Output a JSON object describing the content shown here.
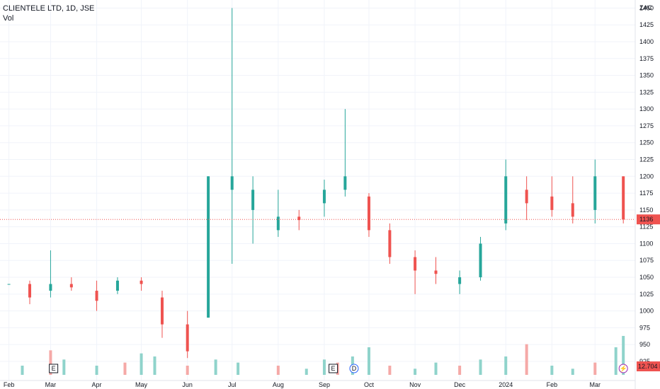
{
  "header": {
    "title": "CLIENTELE LTD, 1D, JSE",
    "volume_label": "Vol",
    "currency": "ZAC"
  },
  "price_axis": {
    "ticks": [
      925,
      950,
      975,
      1000,
      1025,
      1050,
      1075,
      1100,
      1125,
      1150,
      1175,
      1200,
      1225,
      1250,
      1275,
      1300,
      1325,
      1350,
      1375,
      1400,
      1425,
      1450
    ]
  },
  "last_price": {
    "value": 1136,
    "label": "1136"
  },
  "volume_badge": {
    "label": "12.704 K"
  },
  "time_axis": {
    "labels": [
      "Feb",
      "Mar",
      "Apr",
      "May",
      "Jun",
      "Jul",
      "Aug",
      "Sep",
      "Oct",
      "Nov",
      "Dec",
      "2024",
      "Feb",
      "Mar"
    ]
  },
  "event_markers": [
    {
      "type": "earnings",
      "text": "E",
      "date": "2023-03-03"
    },
    {
      "type": "earnings",
      "text": "E",
      "date": "2023-09-07"
    },
    {
      "type": "dividend",
      "text": "D",
      "date": "2023-09-21"
    },
    {
      "type": "split-or-event",
      "text": "⚡",
      "date": "2024-03-20"
    }
  ],
  "colors": {
    "up": "#26a69a",
    "down": "#ef5350",
    "up_volume": "#8fd3cb",
    "down_volume": "#f5a9a7",
    "grid": "#f0f3fa",
    "price_line": "#ef5350"
  },
  "chart_data": {
    "type": "candlestick",
    "symbol": "CLIENTELE LTD",
    "interval": "1D",
    "exchange": "JSE",
    "ylim": [
      905,
      1462
    ],
    "date_range": [
      "2023-01-26",
      "2024-03-28"
    ],
    "note_scale": "linear",
    "grid": true,
    "series": [
      {
        "name": "price",
        "points": [
          [
            "2023-02-01",
            1040,
            1040,
            1040,
            1040
          ],
          [
            "2023-02-15",
            1040,
            1045,
            1010,
            1020
          ],
          [
            "2023-03-01",
            1030,
            1090,
            1020,
            1040
          ],
          [
            "2023-03-15",
            1040,
            1050,
            1030,
            1035
          ],
          [
            "2023-04-01",
            1030,
            1045,
            1000,
            1015
          ],
          [
            "2023-04-15",
            1030,
            1050,
            1025,
            1045
          ],
          [
            "2023-05-01",
            1045,
            1050,
            1030,
            1040
          ],
          [
            "2023-05-15",
            1020,
            1030,
            960,
            980
          ],
          [
            "2023-06-01",
            980,
            1000,
            930,
            940
          ],
          [
            "2023-06-15",
            990,
            1200,
            990,
            1200
          ],
          [
            "2023-07-01",
            1180,
            1450,
            1070,
            1200
          ],
          [
            "2023-07-15",
            1150,
            1200,
            1100,
            1180
          ],
          [
            "2023-08-01",
            1120,
            1180,
            1110,
            1140
          ],
          [
            "2023-08-15",
            1140,
            1150,
            1120,
            1135
          ],
          [
            "2023-09-01",
            1160,
            1195,
            1140,
            1180
          ],
          [
            "2023-09-15",
            1180,
            1300,
            1170,
            1200
          ],
          [
            "2023-10-01",
            1170,
            1175,
            1110,
            1120
          ],
          [
            "2023-10-15",
            1120,
            1130,
            1070,
            1080
          ],
          [
            "2023-11-01",
            1080,
            1090,
            1025,
            1060
          ],
          [
            "2023-11-15",
            1060,
            1080,
            1040,
            1055
          ],
          [
            "2023-12-01",
            1040,
            1060,
            1025,
            1050
          ],
          [
            "2023-12-15",
            1050,
            1110,
            1045,
            1100
          ],
          [
            "2024-01-01",
            1130,
            1225,
            1120,
            1200
          ],
          [
            "2024-01-15",
            1180,
            1200,
            1135,
            1160
          ],
          [
            "2024-02-01",
            1170,
            1200,
            1140,
            1150
          ],
          [
            "2024-02-15",
            1160,
            1200,
            1130,
            1140
          ],
          [
            "2024-03-01",
            1150,
            1225,
            1130,
            1200
          ],
          [
            "2024-03-20",
            1200,
            1200,
            1130,
            1136
          ]
        ]
      },
      {
        "name": "volume",
        "points": [
          [
            "2023-02-10",
            3
          ],
          [
            "2023-03-01",
            8
          ],
          [
            "2023-03-10",
            5
          ],
          [
            "2023-04-01",
            3
          ],
          [
            "2023-04-20",
            4
          ],
          [
            "2023-05-01",
            7
          ],
          [
            "2023-05-10",
            6
          ],
          [
            "2023-06-01",
            3
          ],
          [
            "2023-06-20",
            5
          ],
          [
            "2023-07-05",
            4
          ],
          [
            "2023-08-01",
            3
          ],
          [
            "2023-08-20",
            2
          ],
          [
            "2023-09-01",
            5
          ],
          [
            "2023-09-10",
            4
          ],
          [
            "2023-09-20",
            6
          ],
          [
            "2023-10-01",
            9
          ],
          [
            "2023-10-15",
            3
          ],
          [
            "2023-11-01",
            2
          ],
          [
            "2023-11-15",
            4
          ],
          [
            "2023-12-01",
            3
          ],
          [
            "2023-12-15",
            5
          ],
          [
            "2024-01-01",
            6
          ],
          [
            "2024-01-15",
            10
          ],
          [
            "2024-02-01",
            3
          ],
          [
            "2024-02-15",
            2
          ],
          [
            "2024-03-01",
            4
          ],
          [
            "2024-03-15",
            9
          ],
          [
            "2024-03-20",
            12.704
          ]
        ]
      }
    ]
  }
}
